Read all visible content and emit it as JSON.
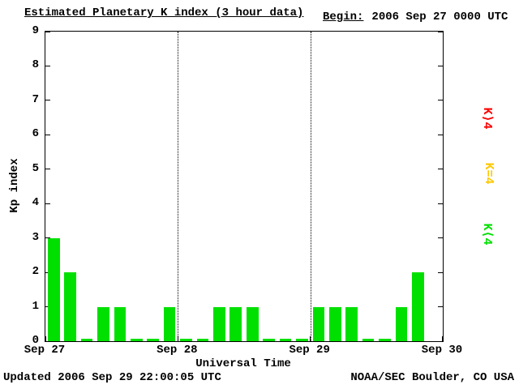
{
  "title": "Estimated Planetary K index (3 hour data)",
  "begin": {
    "label": "Begin:",
    "value": "2006 Sep 27 0000 UTC"
  },
  "footer": {
    "updated": "Updated 2006 Sep 29 22:00:05 UTC",
    "credit": "NOAA/SEC Boulder, CO USA"
  },
  "colors": {
    "background": "#ffffff",
    "axis": "#000000",
    "green": "#00e000",
    "yellow": "#ffc800",
    "red": "#ff0000"
  },
  "chart_data": {
    "type": "bar",
    "title": "Estimated Planetary K index (3 hour data)",
    "xlabel": "Universal Time",
    "ylabel": "Kp index",
    "ylim": [
      0,
      9
    ],
    "yticks": [
      0,
      1,
      2,
      3,
      4,
      5,
      6,
      7,
      8,
      9
    ],
    "xticks": [
      "Sep 27",
      "Sep 28",
      "Sep 29",
      "Sep 30"
    ],
    "interval_hours": 3,
    "total_hours": 72,
    "values": [
      3,
      2,
      0,
      1,
      1,
      0,
      0,
      1,
      0,
      0,
      1,
      1,
      1,
      0,
      0,
      0,
      1,
      1,
      1,
      0,
      0,
      1,
      2
    ],
    "color_rules": {
      "below_4": "#00e000",
      "equal_4": "#ffc800",
      "above_4": "#ff0000"
    },
    "legend": [
      {
        "label": "K⟩4",
        "color": "#ff0000"
      },
      {
        "label": "K=4",
        "color": "#ffc800"
      },
      {
        "label": "K⟨4",
        "color": "#00e000"
      }
    ],
    "gridlines_at": [
      "Sep 28",
      "Sep 29"
    ],
    "legend_position": "right",
    "grid": "vertical-dotted-day-boundaries"
  }
}
